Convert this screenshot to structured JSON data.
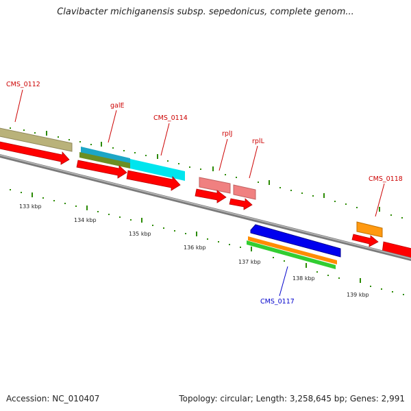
{
  "title": "Clavibacter michiganensis subsp. sepedonicus, complete genom...",
  "accession_text": "Accession: NC_010407",
  "summary_text": "Topology: circular; Length: 3,258,645 bp; Genes: 2,991",
  "colors": {
    "backbone": "#8c8c8c",
    "tick": "#2a8a00",
    "label_red": "#cc0000",
    "label_blue": "#0000cc"
  },
  "gene_labels": [
    {
      "id": "cms0112",
      "text": "CMS_0112",
      "color": "#cc0000"
    },
    {
      "id": "gale",
      "text": "galE",
      "color": "#cc0000"
    },
    {
      "id": "cms0114",
      "text": "CMS_0114",
      "color": "#cc0000"
    },
    {
      "id": "rplj",
      "text": "rplJ",
      "color": "#cc0000"
    },
    {
      "id": "rpll",
      "text": "rplL",
      "color": "#cc0000"
    },
    {
      "id": "cms0118",
      "text": "CMS_0118",
      "color": "#cc0000"
    },
    {
      "id": "cms0117",
      "text": "CMS_0117",
      "color": "#0000cc"
    }
  ],
  "kbp_labels": [
    "133 kbp",
    "134 kbp",
    "135 kbp",
    "136 kbp",
    "137 kbp",
    "138 kbp",
    "139 kbp"
  ]
}
